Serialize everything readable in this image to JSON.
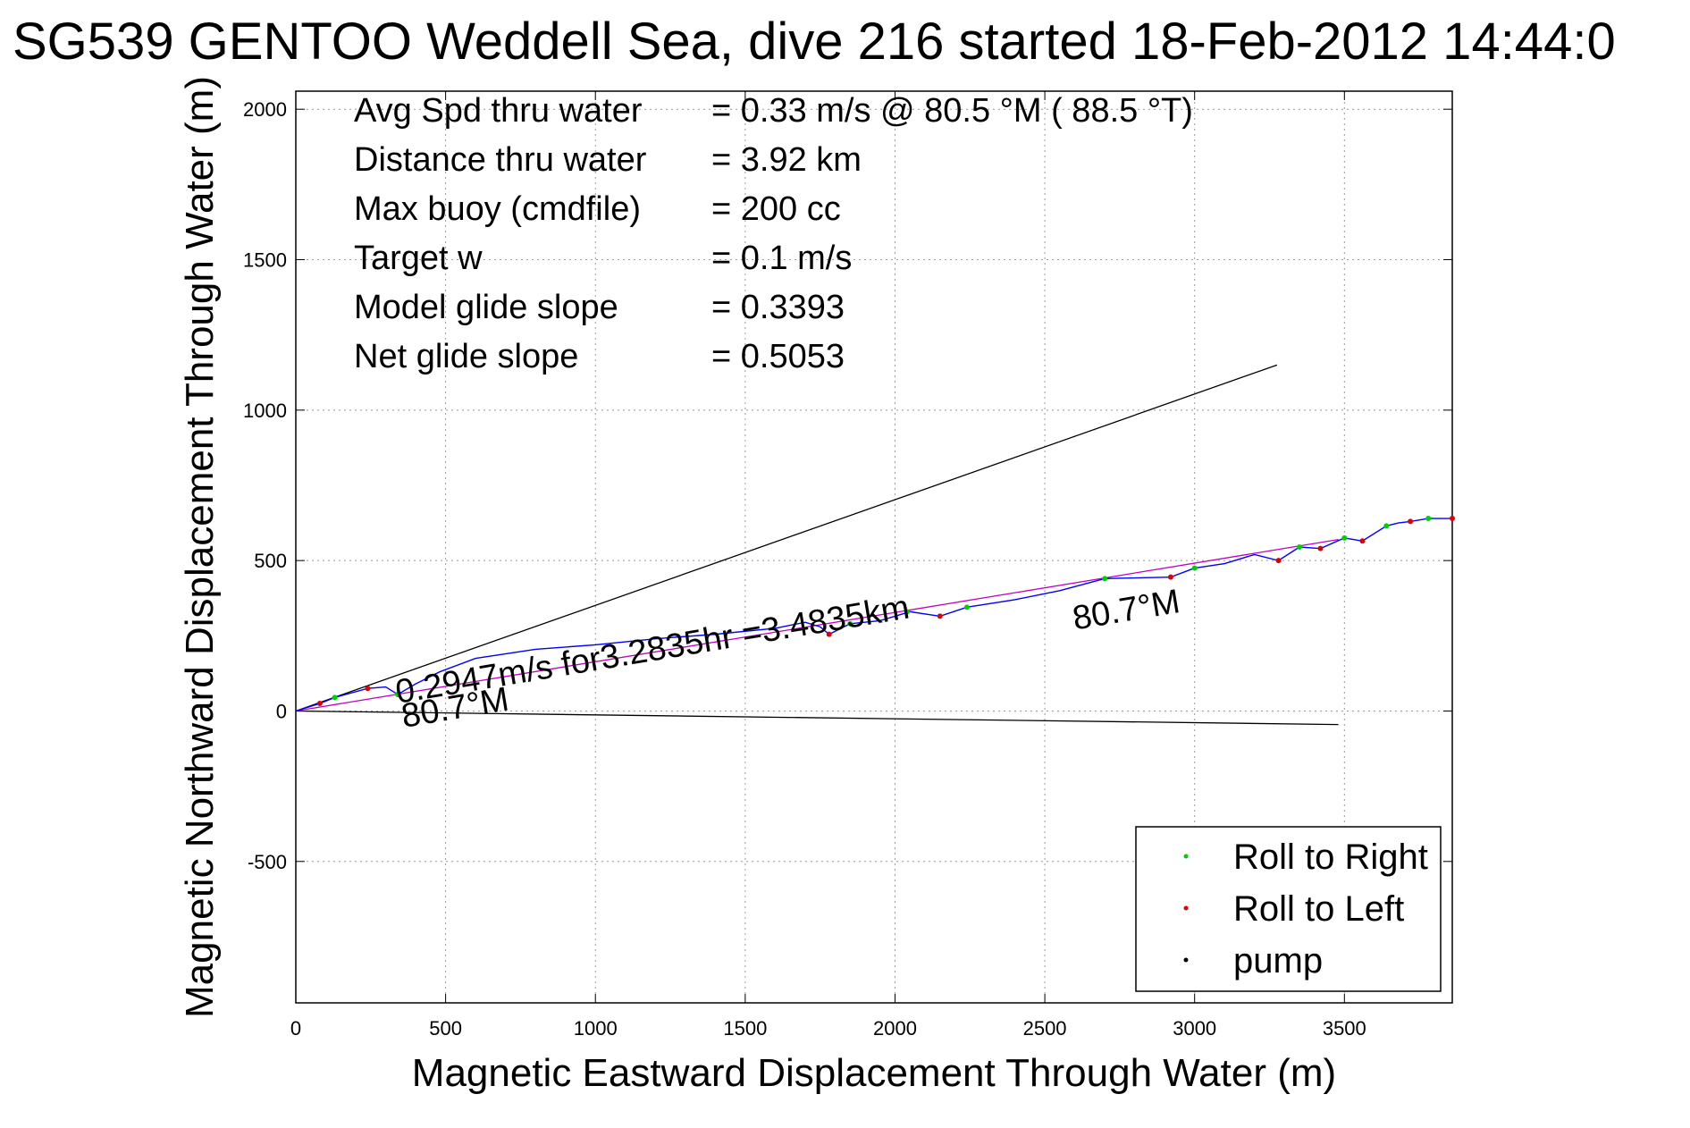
{
  "chart_data": {
    "type": "line",
    "title": "SG539 GENTOO Weddell Sea, dive 216 started 18-Feb-2012 14:44:0",
    "xlabel": "Magnetic Eastward Displacement Through Water (m)",
    "ylabel": "Magnetic Northward Displacement Through Water (m)",
    "xlim": [
      0,
      3860
    ],
    "ylim": [
      -970,
      2060
    ],
    "xticks": [
      0,
      500,
      1000,
      1500,
      2000,
      2500,
      3000,
      3500
    ],
    "yticks": [
      -500,
      0,
      500,
      1000,
      1500,
      2000
    ],
    "xtick_labels": [
      "0",
      "500",
      "1000",
      "1500",
      "2000",
      "2500",
      "3000",
      "3500"
    ],
    "ytick_labels": [
      "-500",
      "0",
      "500",
      "1000",
      "1500",
      "2000"
    ],
    "grid": true,
    "legend_position": "bottom-right",
    "stats": [
      {
        "label": "Avg Spd thru water",
        "value": "=  0.33 m/s @  80.5 °M ( 88.5 °T)"
      },
      {
        "label": "Distance thru water",
        "value": "=  3.92 km"
      },
      {
        "label": "Max buoy (cmdfile)",
        "value": "= 200 cc"
      },
      {
        "label": "Target w",
        "value": "= 0.1 m/s"
      },
      {
        "label": "Model glide slope",
        "value": "= 0.3393"
      },
      {
        "label": "Net glide slope",
        "value": "= 0.5053"
      }
    ],
    "annotations": [
      {
        "text": "0.2947m/s for3.2835hr =3.4835km",
        "x": 340,
        "y": 25
      },
      {
        "text": "80.7°M",
        "x": 360,
        "y": -55
      },
      {
        "text": "80.7°M",
        "x": 2600,
        "y": 270
      }
    ],
    "lines": [
      {
        "name": "upper-bound",
        "color": "#000000",
        "x": [
          0,
          3275
        ],
        "y": [
          0,
          1150
        ]
      },
      {
        "name": "lower-bound",
        "color": "#000000",
        "x": [
          0,
          3480
        ],
        "y": [
          0,
          -45
        ]
      },
      {
        "name": "net-track",
        "color": "#c000c0",
        "x": [
          0,
          3480
        ],
        "y": [
          0,
          570
        ]
      }
    ],
    "series": [
      {
        "name": "track",
        "color": "#0000ff",
        "x": [
          0,
          80,
          130,
          240,
          300,
          340,
          400,
          480,
          600,
          800,
          1000,
          1200,
          1400,
          1600,
          1700,
          1750,
          1780,
          1850,
          1950,
          2050,
          2150,
          2240,
          2400,
          2550,
          2700,
          2920,
          3000,
          3100,
          3200,
          3280,
          3350,
          3420,
          3500,
          3560,
          3640,
          3680,
          3720,
          3780,
          3860
        ],
        "y": [
          0,
          25,
          45,
          75,
          80,
          55,
          90,
          130,
          175,
          205,
          220,
          240,
          255,
          275,
          295,
          280,
          255,
          290,
          300,
          330,
          315,
          345,
          370,
          400,
          440,
          445,
          475,
          490,
          520,
          500,
          545,
          540,
          575,
          565,
          615,
          625,
          630,
          640,
          640
        ]
      },
      {
        "name": "Roll to Right",
        "color": "#00d000",
        "x": [
          130,
          340,
          1850,
          2040,
          2240,
          2700,
          3000,
          3350,
          3500,
          3640,
          3780
        ],
        "y": [
          45,
          55,
          290,
          330,
          345,
          440,
          475,
          545,
          575,
          615,
          640
        ]
      },
      {
        "name": "Roll to Left",
        "color": "#e00000",
        "x": [
          80,
          240,
          1780,
          2150,
          2920,
          3280,
          3420,
          3560,
          3720,
          3860
        ],
        "y": [
          25,
          75,
          255,
          315,
          445,
          500,
          540,
          565,
          630,
          640
        ]
      },
      {
        "name": "pump",
        "color": "#000000",
        "x": [
          0,
          1700
        ],
        "y": [
          0,
          295
        ]
      }
    ]
  }
}
